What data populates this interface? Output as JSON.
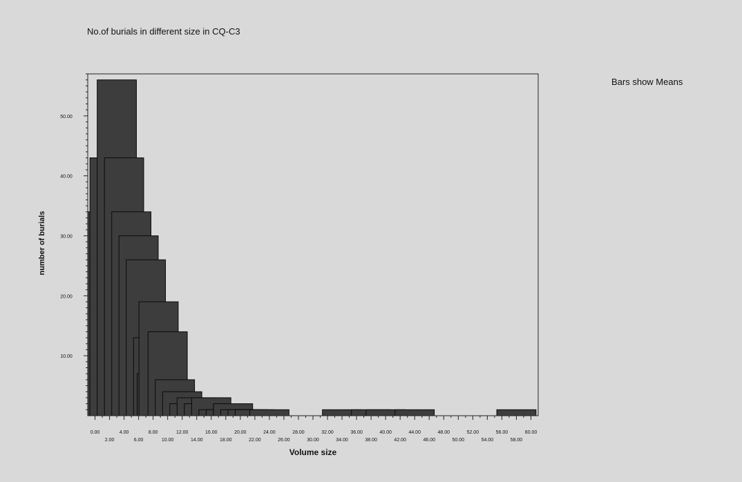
{
  "chart_data": {
    "type": "bar",
    "title": "No.of burials in different size in CQ-C3",
    "note": "Bars show Means",
    "xlabel": "Volume size",
    "ylabel": "number of burials",
    "xlim": [
      -1,
      61
    ],
    "ylim": [
      0,
      57
    ],
    "y_ticks": [
      10,
      20,
      30,
      40,
      50
    ],
    "y_tick_labels": [
      "10.00",
      "20.00",
      "30.00",
      "40.00",
      "50.00"
    ],
    "x_tick_labels": [
      "0.00",
      "2.00",
      "4.00",
      "6.00",
      "8.00",
      "10.00",
      "12.00",
      "14.00",
      "16.00",
      "18.00",
      "20.00",
      "22.00",
      "24.00",
      "26.00",
      "28.00",
      "30.00",
      "32.00",
      "34.00",
      "36.00",
      "38.00",
      "40.00",
      "42.00",
      "44.00",
      "46.00",
      "48.00",
      "50.00",
      "52.00",
      "54.00",
      "56.00",
      "58.00",
      "60.00"
    ],
    "bars": [
      {
        "x": 0.0,
        "value": 16
      },
      {
        "x": 1.0,
        "value": 34
      },
      {
        "x": 2.0,
        "value": 43
      },
      {
        "x": 3.0,
        "value": 56
      },
      {
        "x": 4.0,
        "value": 43
      },
      {
        "x": 5.0,
        "value": 34
      },
      {
        "x": 6.0,
        "value": 30
      },
      {
        "x": 7.0,
        "value": 26
      },
      {
        "x": 8.0,
        "value": 13
      },
      {
        "x": 8.5,
        "value": 7
      },
      {
        "x": 8.75,
        "value": 19
      },
      {
        "x": 10.0,
        "value": 14
      },
      {
        "x": 11.0,
        "value": 6
      },
      {
        "x": 12.0,
        "value": 4
      },
      {
        "x": 13.0,
        "value": 2
      },
      {
        "x": 14.0,
        "value": 3
      },
      {
        "x": 15.0,
        "value": 2
      },
      {
        "x": 16.0,
        "value": 3
      },
      {
        "x": 17.0,
        "value": 1
      },
      {
        "x": 18.0,
        "value": 1
      },
      {
        "x": 19.0,
        "value": 2
      },
      {
        "x": 20.0,
        "value": 1
      },
      {
        "x": 21.0,
        "value": 1
      },
      {
        "x": 22.0,
        "value": 1
      },
      {
        "x": 24.0,
        "value": 1
      },
      {
        "x": 34.0,
        "value": 1
      },
      {
        "x": 38.0,
        "value": 1
      },
      {
        "x": 40.0,
        "value": 1
      },
      {
        "x": 44.0,
        "value": 1
      },
      {
        "x": 58.0,
        "value": 1
      }
    ],
    "bar_width_units": 5.4,
    "bar_color": "#3d3d3d",
    "plot_background": "#d9d9d9",
    "grid": false,
    "legend": "none"
  }
}
